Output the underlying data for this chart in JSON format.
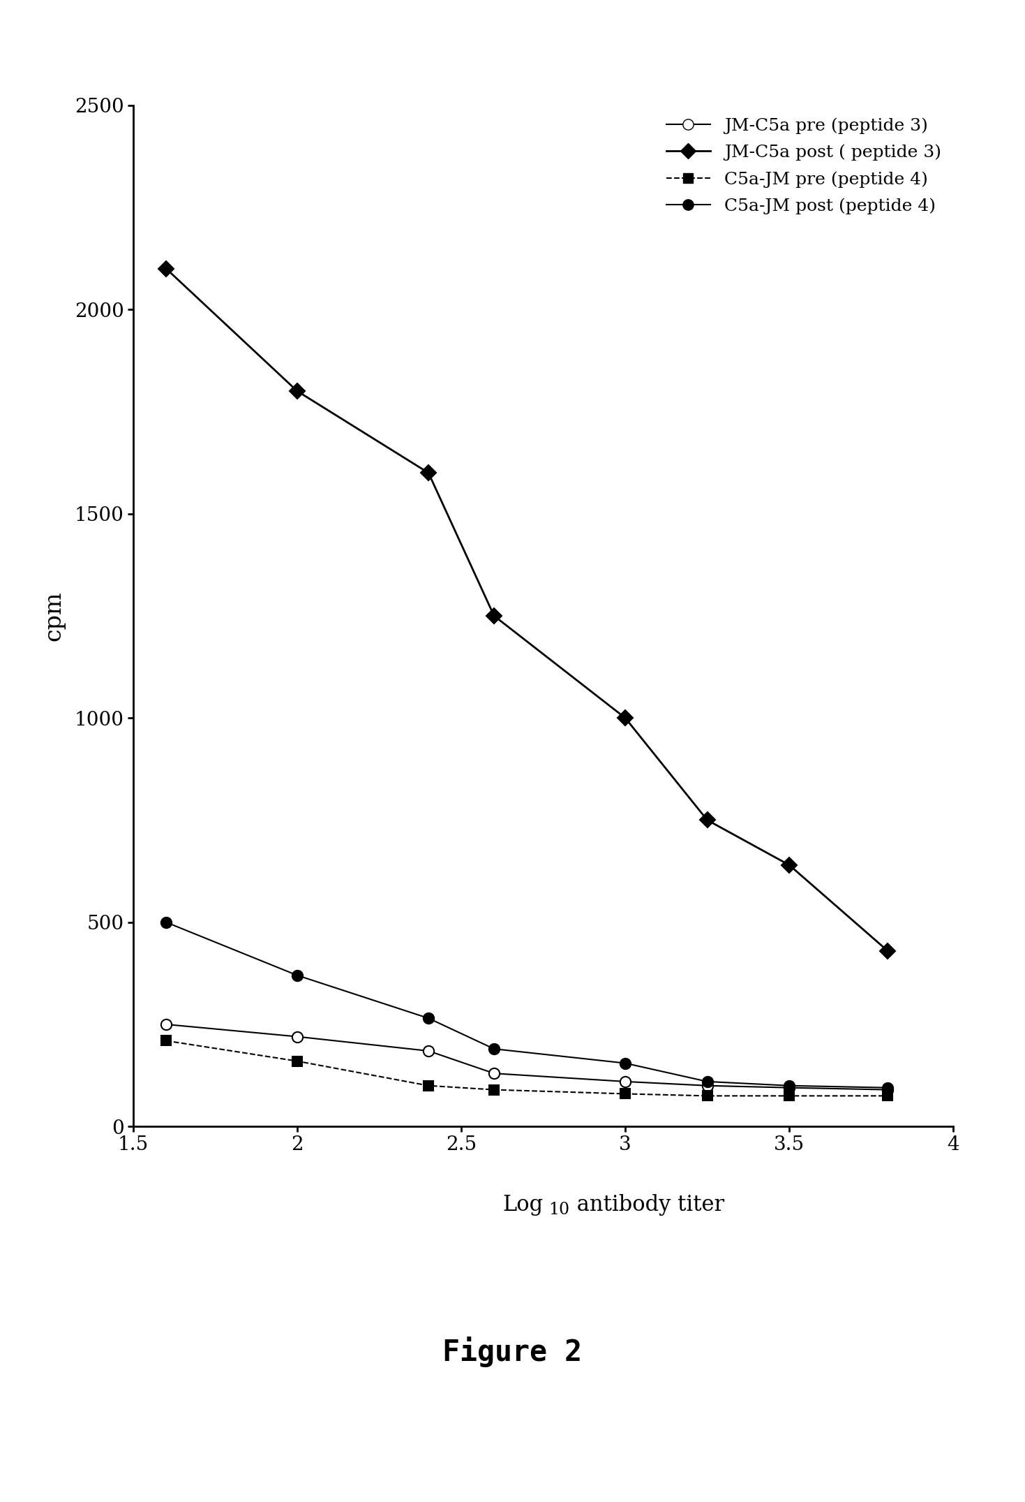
{
  "x_values": [
    1.6,
    2.0,
    2.4,
    2.6,
    3.0,
    3.25,
    3.5,
    3.8
  ],
  "jm_c5a_pre": [
    250,
    220,
    185,
    130,
    110,
    100,
    95,
    90
  ],
  "jm_c5a_post": [
    2100,
    1800,
    1600,
    1250,
    1000,
    750,
    640,
    430
  ],
  "c5a_jm_pre": [
    210,
    160,
    100,
    90,
    80,
    75,
    75,
    75
  ],
  "c5a_jm_post": [
    500,
    370,
    265,
    190,
    155,
    110,
    100,
    95
  ],
  "xlim": [
    1.5,
    4.0
  ],
  "ylim": [
    0,
    2500
  ],
  "yticks": [
    0,
    500,
    1000,
    1500,
    2000,
    2500
  ],
  "xticks": [
    1.5,
    2.0,
    2.5,
    3.0,
    3.5,
    4.0
  ],
  "xticklabels": [
    "1.5",
    "2",
    "2.5",
    "3",
    "3.5",
    "4"
  ],
  "ylabel": "cpm",
  "legend_labels": [
    "JM-C5a pre (peptide 3)",
    "JM-C5a post ( peptide 3)",
    "C5a-JM pre (peptide 4)",
    "C5a-JM post (peptide 4)"
  ],
  "figure_label": "Figure 2",
  "background_color": "#ffffff",
  "line_color": "#000000"
}
